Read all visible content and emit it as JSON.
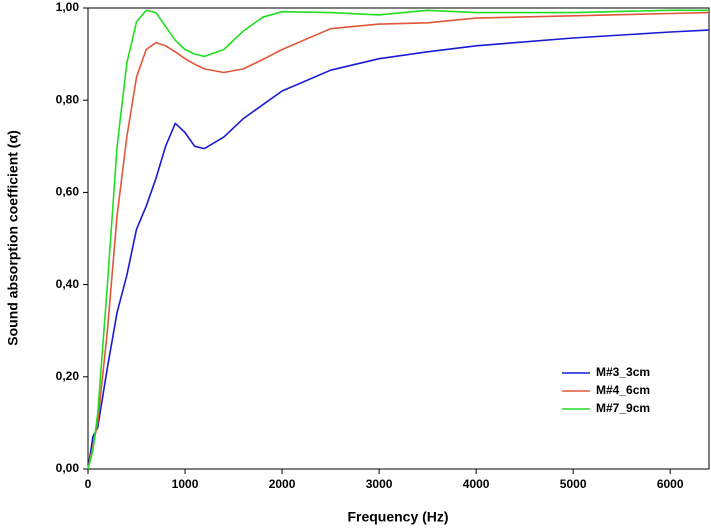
{
  "chart_data": {
    "type": "line",
    "x_label": "Frequency (Hz)",
    "y_label": "Sound absorption coefficient (α)",
    "x": [
      0,
      50,
      100,
      200,
      300,
      400,
      500,
      600,
      700,
      800,
      900,
      1000,
      1100,
      1200,
      1400,
      1600,
      1800,
      2000,
      2500,
      3000,
      3500,
      4000,
      5000,
      6000,
      6400
    ],
    "series": [
      {
        "name": "M#3_3cm",
        "color": "#1a1ad6",
        "values": [
          0,
          0.07,
          0.09,
          0.22,
          0.34,
          0.42,
          0.52,
          0.57,
          0.63,
          0.7,
          0.75,
          0.73,
          0.7,
          0.695,
          0.72,
          0.76,
          0.79,
          0.82,
          0.865,
          0.89,
          0.905,
          0.918,
          0.935,
          0.948,
          0.952
        ]
      },
      {
        "name": "M#4_6cm",
        "color": "#e0573a",
        "values": [
          0,
          0.05,
          0.1,
          0.3,
          0.55,
          0.72,
          0.85,
          0.91,
          0.925,
          0.918,
          0.905,
          0.89,
          0.878,
          0.868,
          0.86,
          0.868,
          0.888,
          0.91,
          0.955,
          0.965,
          0.968,
          0.978,
          0.983,
          0.988,
          0.99
        ]
      },
      {
        "name": "M#7_9cm",
        "color": "#22dd22",
        "values": [
          0,
          0.04,
          0.12,
          0.4,
          0.7,
          0.88,
          0.97,
          0.995,
          0.99,
          0.96,
          0.93,
          0.91,
          0.9,
          0.895,
          0.91,
          0.95,
          0.98,
          0.992,
          0.99,
          0.985,
          0.995,
          0.99,
          0.99,
          0.995,
          0.995
        ]
      }
    ],
    "xlim": [
      0,
      6400
    ],
    "xticks": [
      0,
      1000,
      2000,
      3000,
      4000,
      5000,
      6000
    ],
    "ylim": [
      0,
      1
    ],
    "yticks": [
      {
        "value": 0,
        "label": "0,00"
      },
      {
        "value": 0.2,
        "label": "0,20"
      },
      {
        "value": 0.4,
        "label": "0,40"
      },
      {
        "value": 0.6,
        "label": "0,60"
      },
      {
        "value": 0.8,
        "label": "0,80"
      },
      {
        "value": 1,
        "label": "1,00"
      }
    ],
    "grid": false,
    "legend": "lower-right"
  }
}
